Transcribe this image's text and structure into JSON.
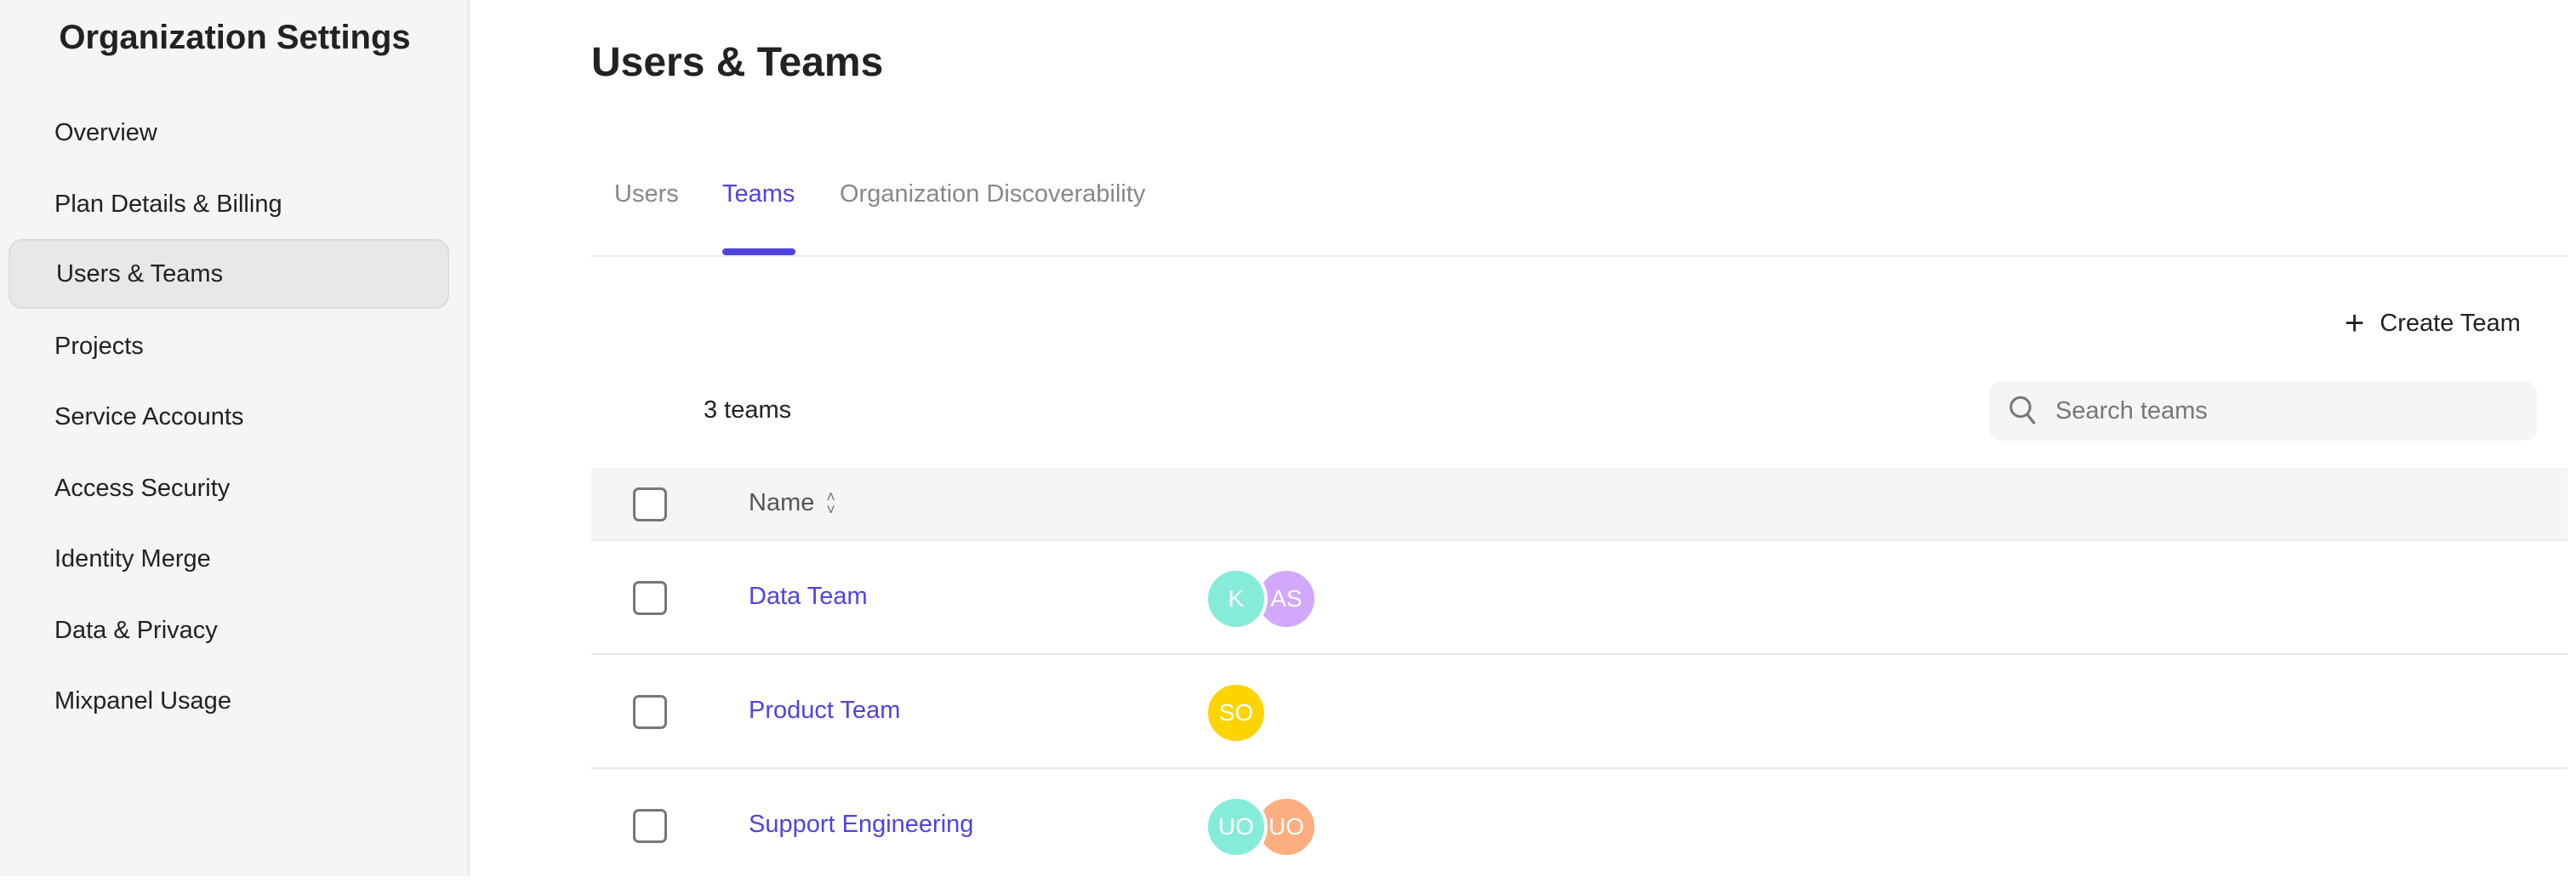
{
  "sidebar": {
    "title": "Organization Settings",
    "items": [
      {
        "label": "Overview"
      },
      {
        "label": "Plan Details & Billing"
      },
      {
        "label": "Users & Teams",
        "active": true
      },
      {
        "label": "Projects"
      },
      {
        "label": "Service Accounts"
      },
      {
        "label": "Access Security"
      },
      {
        "label": "Identity Merge"
      },
      {
        "label": "Data & Privacy"
      },
      {
        "label": "Mixpanel Usage"
      }
    ]
  },
  "page": {
    "title": "Users & Teams"
  },
  "tabs": [
    {
      "label": "Users"
    },
    {
      "label": "Teams",
      "active": true
    },
    {
      "label": "Organization Discoverability"
    }
  ],
  "toolbar": {
    "create_label": "Create Team",
    "count": "3 teams",
    "search_placeholder": "Search teams"
  },
  "table": {
    "header": {
      "name": "Name"
    },
    "rows": [
      {
        "name": "Data Team",
        "members": [
          {
            "initials": "K",
            "color": "#86ecd9"
          },
          {
            "initials": "AS",
            "color": "#d2a8fb"
          }
        ]
      },
      {
        "name": "Product Team",
        "members": [
          {
            "initials": "SO",
            "color": "#fdd300"
          }
        ]
      },
      {
        "name": "Support Engineering",
        "members": [
          {
            "initials": "UO",
            "color": "#86ecd9"
          },
          {
            "initials": "UO",
            "color": "#fcae80"
          }
        ]
      }
    ]
  },
  "colors": {
    "accent": "#4f44e0"
  }
}
